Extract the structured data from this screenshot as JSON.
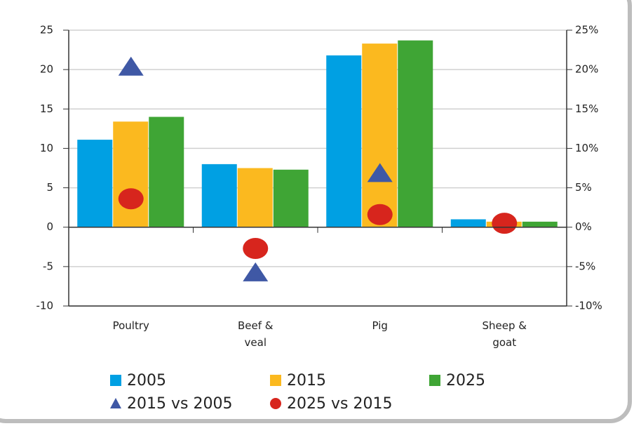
{
  "chart_data": {
    "type": "bar",
    "categories": [
      "Poultry",
      "Beef &\nveal",
      "Pig",
      "Sheep &\ngoat"
    ],
    "series": [
      {
        "name": "2005",
        "color": "#00a0e3",
        "values": [
          11.1,
          8.0,
          21.8,
          1.0
        ]
      },
      {
        "name": "2015",
        "color": "#fbb91f",
        "values": [
          13.4,
          7.5,
          23.3,
          0.7
        ]
      },
      {
        "name": "2025",
        "color": "#3fa535",
        "values": [
          14.0,
          7.3,
          23.7,
          0.7
        ]
      },
      {
        "name": "2015 vs 2005",
        "type": "scatter",
        "marker": "triangle",
        "axis": "y2",
        "color": "#3f58a5",
        "values": [
          20.3,
          -5.8,
          6.8,
          null
        ]
      },
      {
        "name": "2025 vs 2015",
        "type": "scatter",
        "marker": "circle",
        "axis": "y2",
        "color": "#d7251d",
        "values": [
          3.6,
          -2.7,
          1.6,
          0.5
        ]
      }
    ],
    "ylim": [
      -10,
      25
    ],
    "yticks": [
      -10,
      -5,
      0,
      5,
      10,
      15,
      20,
      25
    ],
    "y2lim": [
      -10,
      25
    ],
    "y2ticks": [
      {
        "value": -10,
        "label": "-10%"
      },
      {
        "value": -5,
        "label": "-5%"
      },
      {
        "value": 0,
        "label": "0%"
      },
      {
        "value": 5,
        "label": "5%"
      },
      {
        "value": 10,
        "label": "10%"
      },
      {
        "value": 15,
        "label": "15%"
      },
      {
        "value": 20,
        "label": "20%"
      },
      {
        "value": 25,
        "label": "25%"
      }
    ],
    "grid": true
  }
}
